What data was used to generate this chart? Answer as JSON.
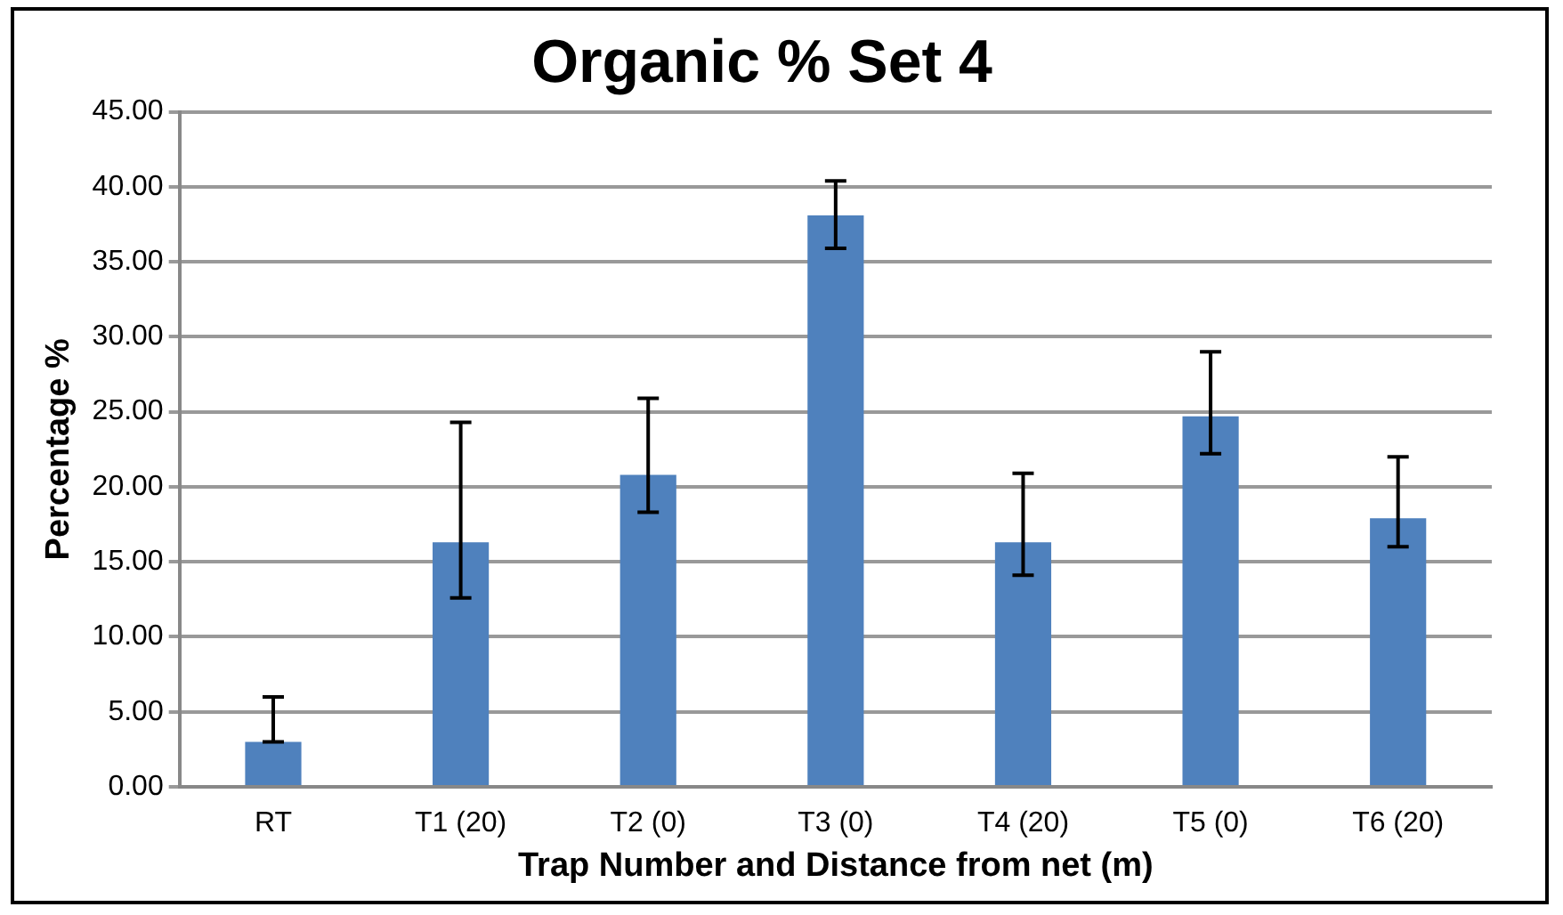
{
  "chart_data": {
    "type": "bar",
    "title": "Organic % Set 4",
    "xlabel": "Trap Number and Distance from net (m)",
    "ylabel": "Percentage %",
    "categories": [
      "RT",
      "T1 (20)",
      "T2 (0)",
      "T3 (0)",
      "T4 (20)",
      "T5 (0)",
      "T6 (20)"
    ],
    "values": [
      3.0,
      16.3,
      20.8,
      38.1,
      16.3,
      24.7,
      17.9
    ],
    "errors": [
      [
        3.0,
        6.0
      ],
      [
        12.6,
        24.3
      ],
      [
        18.3,
        25.9
      ],
      [
        35.9,
        40.4
      ],
      [
        14.1,
        20.9
      ],
      [
        22.2,
        29.0
      ],
      [
        16.0,
        22.0
      ]
    ],
    "color": "#4f81bd",
    "ylim": [
      0,
      45
    ],
    "yticks": [
      {
        "value": 0,
        "label": "0.00"
      },
      {
        "value": 5,
        "label": "5.00"
      },
      {
        "value": 10,
        "label": "10.00"
      },
      {
        "value": 15,
        "label": "15.00"
      },
      {
        "value": 20,
        "label": "20.00"
      },
      {
        "value": 25,
        "label": "25.00"
      },
      {
        "value": 30,
        "label": "30.00"
      },
      {
        "value": 35,
        "label": "35.00"
      },
      {
        "value": 40,
        "label": "40.00"
      },
      {
        "value": 45,
        "label": "45.00"
      }
    ],
    "grid": "y",
    "legend": false
  }
}
